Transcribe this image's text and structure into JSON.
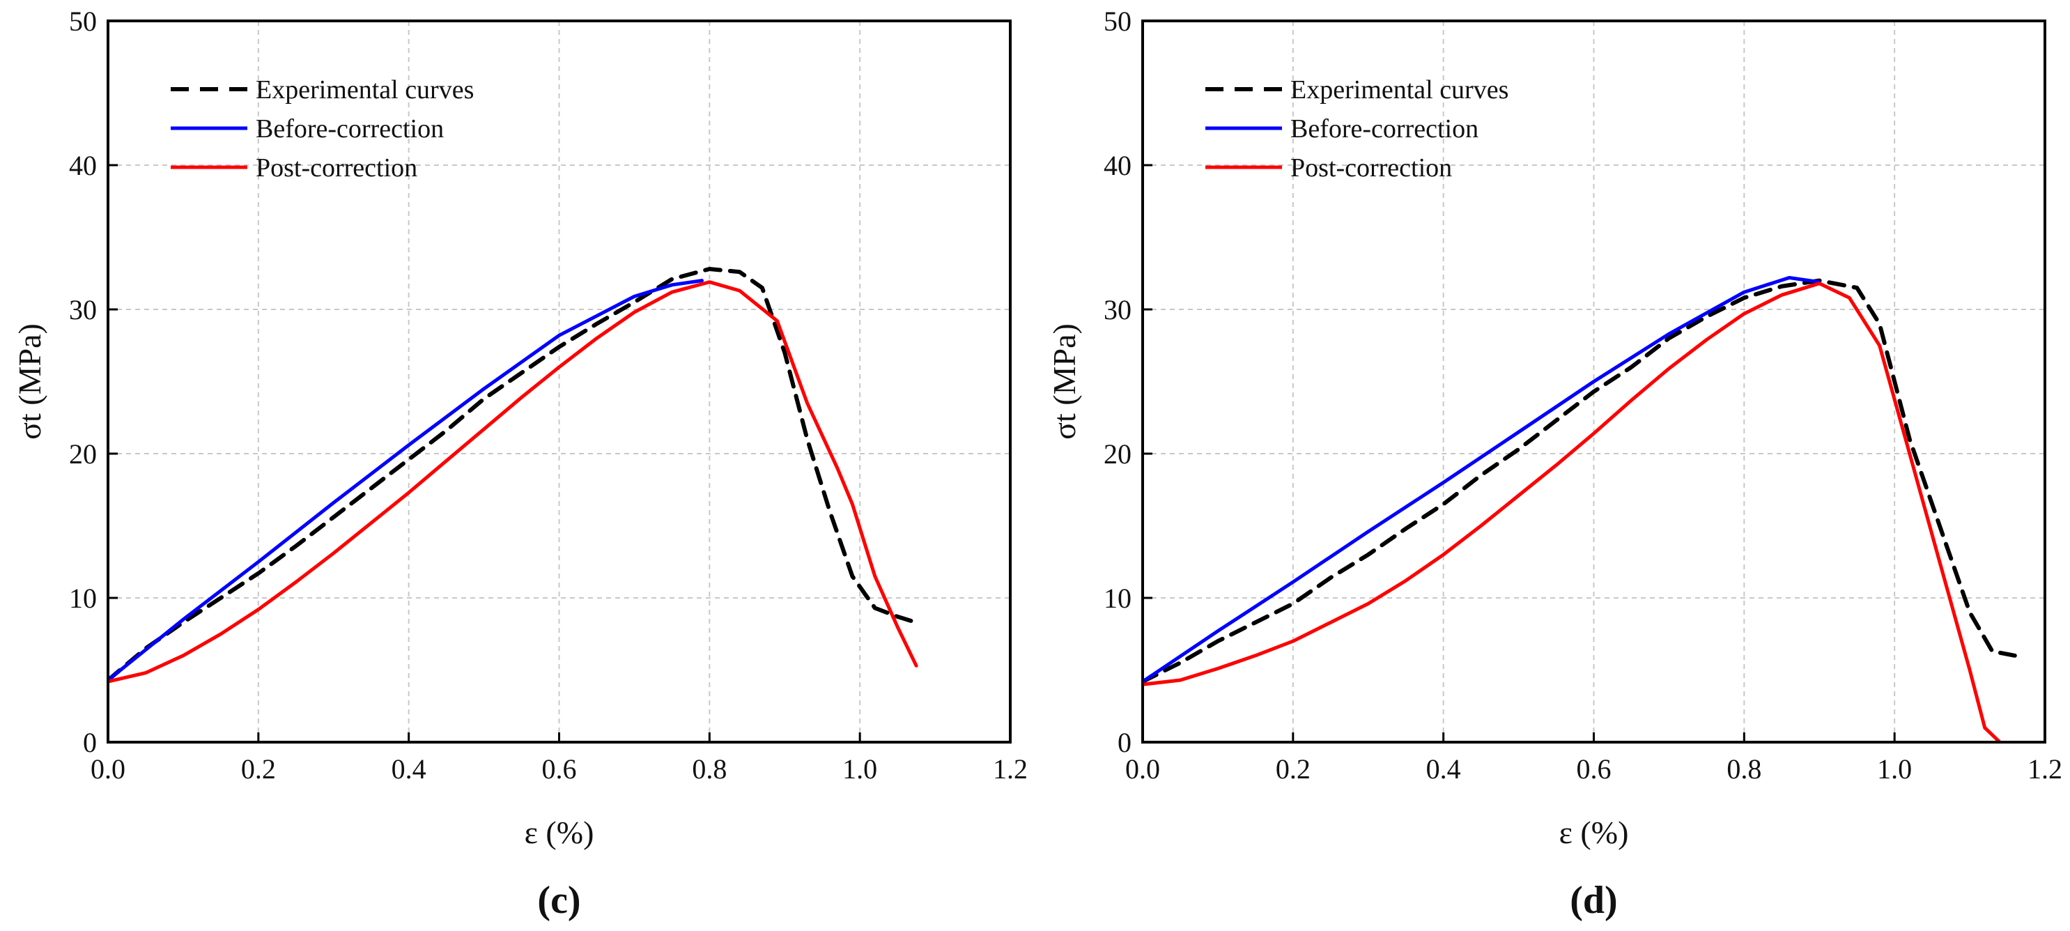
{
  "chart_data": [
    {
      "type": "line",
      "panel_label": "(c)",
      "xlabel": "ε (%)",
      "ylabel": "σt (MPa)",
      "xlim": [
        0,
        1.2
      ],
      "ylim": [
        0,
        50
      ],
      "x_ticks": [
        "0.0",
        "0.2",
        "0.4",
        "0.6",
        "0.8",
        "1.0",
        "1.2"
      ],
      "y_ticks": [
        "0",
        "10",
        "20",
        "30",
        "40",
        "50"
      ],
      "grid": true,
      "legend_position": "top-left",
      "series": [
        {
          "name": "Experimental curves",
          "style": "dashed",
          "color": "#000000",
          "x": [
            0.0,
            0.05,
            0.1,
            0.15,
            0.2,
            0.25,
            0.3,
            0.35,
            0.4,
            0.45,
            0.5,
            0.55,
            0.6,
            0.65,
            0.7,
            0.75,
            0.8,
            0.84,
            0.87,
            0.9,
            0.93,
            0.96,
            0.99,
            1.02,
            1.05,
            1.075
          ],
          "y": [
            4.3,
            6.5,
            8.3,
            10.0,
            11.7,
            13.6,
            15.6,
            17.6,
            19.6,
            21.6,
            23.8,
            25.6,
            27.4,
            29.0,
            30.5,
            32.1,
            32.8,
            32.6,
            31.5,
            27.0,
            21.0,
            16.0,
            11.5,
            9.3,
            8.7,
            8.3
          ]
        },
        {
          "name": "Before-correction",
          "style": "solid",
          "color": "#0000ff",
          "x": [
            0.0,
            0.1,
            0.2,
            0.3,
            0.4,
            0.5,
            0.6,
            0.7,
            0.75,
            0.79
          ],
          "y": [
            4.3,
            8.5,
            12.5,
            16.6,
            20.6,
            24.5,
            28.2,
            30.9,
            31.7,
            32.0
          ]
        },
        {
          "name": "Post-correction",
          "style": "solid",
          "color": "#ff0000",
          "x": [
            0.0,
            0.05,
            0.1,
            0.15,
            0.2,
            0.25,
            0.3,
            0.35,
            0.4,
            0.45,
            0.5,
            0.55,
            0.6,
            0.65,
            0.7,
            0.75,
            0.8,
            0.84,
            0.89,
            0.93,
            0.97,
            0.99,
            1.02,
            1.05,
            1.075
          ],
          "y": [
            4.2,
            4.8,
            6.0,
            7.5,
            9.2,
            11.1,
            13.1,
            15.2,
            17.3,
            19.5,
            21.7,
            23.9,
            26.0,
            28.0,
            29.8,
            31.2,
            31.9,
            31.3,
            29.2,
            23.5,
            19.0,
            16.5,
            11.5,
            8.0,
            5.3
          ]
        }
      ]
    },
    {
      "type": "line",
      "panel_label": "(d)",
      "xlabel": "ε (%)",
      "ylabel": "σt (MPa)",
      "xlim": [
        0,
        1.2
      ],
      "ylim": [
        0,
        50
      ],
      "x_ticks": [
        "0.0",
        "0.2",
        "0.4",
        "0.6",
        "0.8",
        "1.0",
        "1.2"
      ],
      "y_ticks": [
        "0",
        "10",
        "20",
        "30",
        "40",
        "50"
      ],
      "grid": true,
      "legend_position": "top-left",
      "series": [
        {
          "name": "Experimental curves",
          "style": "dashed",
          "color": "#000000",
          "x": [
            0.0,
            0.05,
            0.1,
            0.15,
            0.2,
            0.25,
            0.3,
            0.35,
            0.4,
            0.45,
            0.5,
            0.55,
            0.6,
            0.65,
            0.7,
            0.75,
            0.8,
            0.85,
            0.9,
            0.95,
            0.98,
            1.02,
            1.06,
            1.1,
            1.13,
            1.16
          ],
          "y": [
            4.2,
            5.5,
            7.0,
            8.3,
            9.6,
            11.4,
            13.0,
            14.8,
            16.5,
            18.5,
            20.3,
            22.3,
            24.3,
            26.0,
            28.0,
            29.5,
            30.8,
            31.6,
            32.0,
            31.5,
            29.0,
            21.0,
            15.0,
            9.0,
            6.3,
            6.0
          ]
        },
        {
          "name": "Before-correction",
          "style": "solid",
          "color": "#0000ff",
          "x": [
            0.0,
            0.1,
            0.2,
            0.3,
            0.4,
            0.5,
            0.6,
            0.7,
            0.8,
            0.86,
            0.9
          ],
          "y": [
            4.2,
            7.7,
            11.1,
            14.6,
            18.0,
            21.5,
            25.0,
            28.3,
            31.2,
            32.2,
            31.9
          ]
        },
        {
          "name": "Post-correction",
          "style": "solid",
          "color": "#ff0000",
          "x": [
            0.0,
            0.05,
            0.1,
            0.15,
            0.2,
            0.25,
            0.3,
            0.35,
            0.4,
            0.45,
            0.5,
            0.55,
            0.6,
            0.65,
            0.7,
            0.75,
            0.8,
            0.85,
            0.9,
            0.94,
            0.98,
            1.02,
            1.06,
            1.1,
            1.12,
            1.14
          ],
          "y": [
            4.0,
            4.3,
            5.1,
            6.0,
            7.0,
            8.3,
            9.6,
            11.2,
            13.0,
            15.0,
            17.1,
            19.2,
            21.4,
            23.7,
            25.9,
            27.9,
            29.7,
            31.0,
            31.8,
            30.8,
            27.5,
            20.0,
            12.5,
            5.0,
            1.0,
            0.0
          ]
        }
      ]
    }
  ]
}
